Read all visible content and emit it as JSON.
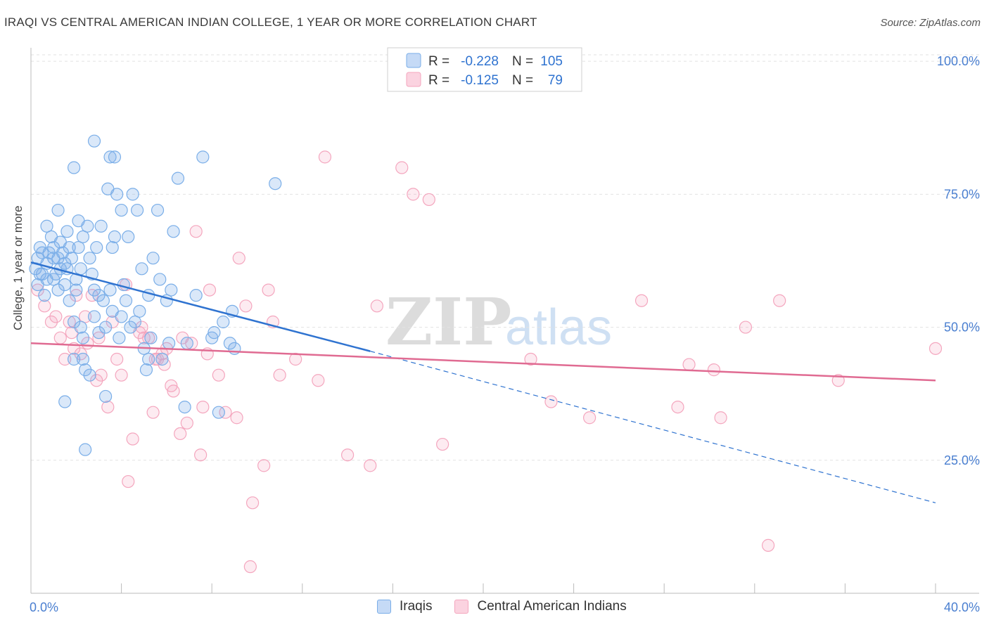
{
  "chart_data": {
    "type": "scatter",
    "title": "IRAQI VS CENTRAL AMERICAN INDIAN COLLEGE, 1 YEAR OR MORE CORRELATION CHART",
    "source": "Source: ZipAtlas.com",
    "xlabel": "",
    "ylabel": "College, 1 year or more",
    "xlim": [
      0,
      40
    ],
    "ylim": [
      0,
      102
    ],
    "x_tick_labels": [
      "0.0%",
      "40.0%"
    ],
    "y_tick_labels": [
      "100.0%",
      "75.0%",
      "50.0%",
      "25.0%"
    ],
    "y_tick_values": [
      100,
      75,
      50,
      25
    ],
    "watermark": {
      "zip": "ZIP",
      "atlas": "atlas"
    },
    "legend_stats": [
      {
        "r_label": "R =",
        "r_value": "-0.228",
        "n_label": "N =",
        "n_value": "105"
      },
      {
        "r_label": "R =",
        "r_value": "-0.125",
        "n_label": "N =",
        "n_value": "79"
      }
    ],
    "series": [
      {
        "name": "Iraqis",
        "color": "#7aaee8",
        "line_color": "#2f73d0",
        "trend": {
          "x0": 0,
          "y0": 62.2,
          "x1": 15,
          "y1": 45.5,
          "dash_x1": 40,
          "dash_y1": 17
        },
        "points": [
          [
            0.2,
            61
          ],
          [
            0.3,
            58
          ],
          [
            0.3,
            63
          ],
          [
            0.4,
            65
          ],
          [
            0.5,
            64
          ],
          [
            0.5,
            60
          ],
          [
            0.6,
            56
          ],
          [
            0.7,
            69
          ],
          [
            0.7,
            62
          ],
          [
            0.8,
            64
          ],
          [
            0.9,
            67
          ],
          [
            1.0,
            65
          ],
          [
            1.0,
            59
          ],
          [
            1.0,
            63
          ],
          [
            1.1,
            60
          ],
          [
            1.2,
            57
          ],
          [
            1.2,
            63
          ],
          [
            1.3,
            66
          ],
          [
            1.3,
            61
          ],
          [
            1.4,
            64
          ],
          [
            1.5,
            62
          ],
          [
            1.5,
            58
          ],
          [
            1.6,
            68
          ],
          [
            1.6,
            61
          ],
          [
            1.7,
            65
          ],
          [
            1.7,
            55
          ],
          [
            1.8,
            63
          ],
          [
            1.9,
            80
          ],
          [
            1.9,
            51
          ],
          [
            2.0,
            59
          ],
          [
            2.0,
            57
          ],
          [
            2.1,
            70
          ],
          [
            2.1,
            65
          ],
          [
            2.2,
            61
          ],
          [
            2.2,
            50
          ],
          [
            2.3,
            67
          ],
          [
            2.3,
            44
          ],
          [
            2.4,
            42
          ],
          [
            2.4,
            27
          ],
          [
            2.5,
            69
          ],
          [
            2.6,
            63
          ],
          [
            2.7,
            60
          ],
          [
            2.8,
            85
          ],
          [
            2.8,
            57
          ],
          [
            2.9,
            65
          ],
          [
            3.0,
            56
          ],
          [
            3.0,
            49
          ],
          [
            3.1,
            69
          ],
          [
            3.2,
            55
          ],
          [
            3.3,
            37
          ],
          [
            3.3,
            50
          ],
          [
            3.4,
            76
          ],
          [
            3.5,
            82
          ],
          [
            3.5,
            57
          ],
          [
            3.6,
            65
          ],
          [
            3.7,
            82
          ],
          [
            3.7,
            67
          ],
          [
            3.8,
            75
          ],
          [
            3.9,
            48
          ],
          [
            4.0,
            72
          ],
          [
            4.0,
            52
          ],
          [
            4.1,
            58
          ],
          [
            4.2,
            55
          ],
          [
            4.3,
            67
          ],
          [
            4.4,
            50
          ],
          [
            4.5,
            75
          ],
          [
            4.6,
            51
          ],
          [
            4.7,
            72
          ],
          [
            4.8,
            53
          ],
          [
            4.9,
            61
          ],
          [
            5.0,
            46
          ],
          [
            5.1,
            42
          ],
          [
            5.2,
            44
          ],
          [
            5.3,
            48
          ],
          [
            5.4,
            63
          ],
          [
            5.6,
            72
          ],
          [
            5.7,
            59
          ],
          [
            5.8,
            44
          ],
          [
            6.0,
            55
          ],
          [
            6.1,
            47
          ],
          [
            6.2,
            57
          ],
          [
            6.3,
            68
          ],
          [
            6.5,
            78
          ],
          [
            6.8,
            35
          ],
          [
            6.9,
            47
          ],
          [
            7.3,
            56
          ],
          [
            7.6,
            82
          ],
          [
            8.0,
            48
          ],
          [
            8.1,
            49
          ],
          [
            8.3,
            34
          ],
          [
            8.5,
            51
          ],
          [
            8.8,
            47
          ],
          [
            8.9,
            53
          ],
          [
            9.0,
            46
          ],
          [
            10.8,
            77
          ],
          [
            0.4,
            60
          ],
          [
            1.2,
            72
          ],
          [
            2.8,
            52
          ],
          [
            1.5,
            36
          ],
          [
            2.6,
            41
          ],
          [
            3.6,
            53
          ],
          [
            5.2,
            56
          ],
          [
            0.7,
            59
          ],
          [
            2.3,
            48
          ],
          [
            1.9,
            44
          ]
        ]
      },
      {
        "name": "Central American Indians",
        "color": "#f4a6be",
        "line_color": "#e06b92",
        "trend": {
          "x0": 0,
          "y0": 47,
          "x1": 40,
          "y1": 40
        },
        "points": [
          [
            0.3,
            57
          ],
          [
            0.6,
            54
          ],
          [
            0.9,
            51
          ],
          [
            1.1,
            52
          ],
          [
            1.3,
            48
          ],
          [
            1.5,
            44
          ],
          [
            1.7,
            51
          ],
          [
            1.9,
            46
          ],
          [
            2.0,
            56
          ],
          [
            2.2,
            45
          ],
          [
            2.5,
            47
          ],
          [
            2.7,
            56
          ],
          [
            2.9,
            40
          ],
          [
            3.1,
            41
          ],
          [
            3.4,
            35
          ],
          [
            3.6,
            51
          ],
          [
            3.8,
            44
          ],
          [
            4.2,
            58
          ],
          [
            4.3,
            21
          ],
          [
            4.5,
            29
          ],
          [
            4.8,
            49
          ],
          [
            5.0,
            48
          ],
          [
            5.2,
            48
          ],
          [
            5.4,
            34
          ],
          [
            5.6,
            44
          ],
          [
            5.8,
            45
          ],
          [
            5.9,
            43
          ],
          [
            6.0,
            46
          ],
          [
            6.3,
            38
          ],
          [
            6.6,
            30
          ],
          [
            6.9,
            32
          ],
          [
            7.1,
            47
          ],
          [
            7.3,
            68
          ],
          [
            7.6,
            35
          ],
          [
            7.8,
            45
          ],
          [
            7.9,
            57
          ],
          [
            8.3,
            41
          ],
          [
            8.6,
            34
          ],
          [
            9.1,
            33
          ],
          [
            9.2,
            63
          ],
          [
            9.5,
            54
          ],
          [
            9.8,
            17
          ],
          [
            10.3,
            24
          ],
          [
            10.5,
            57
          ],
          [
            10.7,
            51
          ],
          [
            11.0,
            41
          ],
          [
            11.7,
            44
          ],
          [
            12.7,
            40
          ],
          [
            13.0,
            82
          ],
          [
            14.0,
            26
          ],
          [
            15.0,
            24
          ],
          [
            15.3,
            54
          ],
          [
            16.4,
            80
          ],
          [
            16.9,
            75
          ],
          [
            17.6,
            74
          ],
          [
            18.2,
            28
          ],
          [
            22.1,
            44
          ],
          [
            23.0,
            36
          ],
          [
            24.7,
            33
          ],
          [
            27.0,
            55
          ],
          [
            28.6,
            35
          ],
          [
            29.1,
            43
          ],
          [
            30.2,
            42
          ],
          [
            30.5,
            33
          ],
          [
            31.6,
            50
          ],
          [
            32.6,
            9
          ],
          [
            33.1,
            55
          ],
          [
            35.7,
            40
          ],
          [
            40.0,
            46
          ],
          [
            5.5,
            44
          ],
          [
            6.7,
            48
          ],
          [
            9.7,
            5
          ],
          [
            4.0,
            41
          ],
          [
            3.0,
            48
          ],
          [
            7.5,
            26
          ],
          [
            2.4,
            52
          ],
          [
            1.8,
            49
          ],
          [
            4.9,
            50
          ],
          [
            6.2,
            39
          ]
        ]
      }
    ]
  }
}
